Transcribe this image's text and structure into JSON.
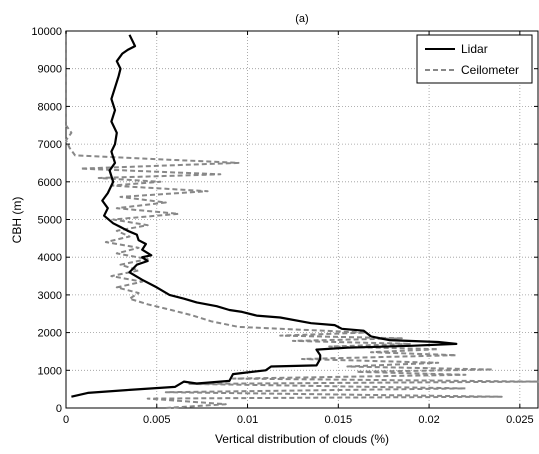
{
  "chart_data": {
    "type": "line",
    "title": "(a)",
    "xlabel": "Vertical distribution of clouds (%)",
    "ylabel": "CBH (m)",
    "xlim": [
      0,
      0.026
    ],
    "ylim": [
      0,
      10000
    ],
    "xticks": [
      0,
      0.005,
      0.01,
      0.015,
      0.02,
      0.025
    ],
    "xtick_labels": [
      "0",
      "0.005",
      "0.01",
      "0.015",
      "0.02",
      "0.025"
    ],
    "yticks": [
      0,
      1000,
      2000,
      3000,
      4000,
      5000,
      6000,
      7000,
      8000,
      9000,
      10000
    ],
    "ytick_labels": [
      "0",
      "1000",
      "2000",
      "3000",
      "4000",
      "5000",
      "6000",
      "7000",
      "8000",
      "9000",
      "10000"
    ],
    "grid": true,
    "legend_position": "top-right",
    "series": [
      {
        "name": "Lidar",
        "style": "solid",
        "color": "#000000",
        "x": [
          0.0003,
          0.0012,
          0.0035,
          0.006,
          0.0065,
          0.0072,
          0.009,
          0.0092,
          0.011,
          0.0113,
          0.0138,
          0.014,
          0.014,
          0.0138,
          0.0155,
          0.019,
          0.0215,
          0.0205,
          0.0178,
          0.0168,
          0.0164,
          0.0152,
          0.0148,
          0.0135,
          0.0118,
          0.0105,
          0.0097,
          0.009,
          0.0083,
          0.0072,
          0.0065,
          0.0057,
          0.005,
          0.0042,
          0.0035,
          0.0039,
          0.0045,
          0.0042,
          0.0047,
          0.0042,
          0.0044,
          0.004,
          0.0039,
          0.0034,
          0.003,
          0.0026,
          0.0021,
          0.0023,
          0.002,
          0.0023,
          0.0026,
          0.0024,
          0.0027,
          0.0025,
          0.0027,
          0.0028,
          0.0025,
          0.0027,
          0.0025,
          0.0027,
          0.0029,
          0.003,
          0.0028,
          0.0031,
          0.0034,
          0.0038,
          0.0037,
          0.0035
        ],
        "y": [
          300,
          400,
          480,
          560,
          700,
          650,
          720,
          900,
          1000,
          1100,
          1130,
          1300,
          1400,
          1550,
          1600,
          1650,
          1700,
          1750,
          1800,
          1900,
          2050,
          2100,
          2200,
          2250,
          2400,
          2450,
          2550,
          2600,
          2700,
          2800,
          2900,
          3000,
          3200,
          3400,
          3600,
          3800,
          3900,
          4000,
          4050,
          4200,
          4350,
          4450,
          4600,
          4700,
          4800,
          4900,
          5100,
          5300,
          5500,
          5700,
          6000,
          6300,
          6500,
          6800,
          7000,
          7300,
          7600,
          7900,
          8200,
          8500,
          8800,
          9000,
          9200,
          9400,
          9500,
          9600,
          9700,
          9900
        ]
      },
      {
        "name": "Ceilometer",
        "style": "dashed",
        "color": "#888888",
        "x": [
          0.0055,
          0.0088,
          0.0045,
          0.024,
          0.0055,
          0.022,
          0.0068,
          0.026,
          0.0092,
          0.022,
          0.016,
          0.0235,
          0.0155,
          0.0205,
          0.013,
          0.0215,
          0.0168,
          0.0205,
          0.0145,
          0.019,
          0.0125,
          0.0185,
          0.0118,
          0.0165,
          0.0095,
          0.008,
          0.007,
          0.0058,
          0.0045,
          0.0035,
          0.004,
          0.0028,
          0.0042,
          0.0025,
          0.004,
          0.003,
          0.0045,
          0.0028,
          0.004,
          0.0022,
          0.0035,
          0.0028,
          0.0045,
          0.0026,
          0.0062,
          0.0028,
          0.0055,
          0.003,
          0.0078,
          0.0025,
          0.0052,
          0.0018,
          0.0085,
          0.0008,
          0.0095,
          0.0005,
          0.0002,
          0.0,
          0.0003,
          0.0,
          0.0,
          0.0,
          0.0
        ],
        "y": [
          0,
          100,
          250,
          300,
          420,
          520,
          640,
          700,
          780,
          880,
          960,
          1020,
          1100,
          1200,
          1300,
          1400,
          1480,
          1560,
          1630,
          1700,
          1780,
          1850,
          1920,
          2000,
          2150,
          2300,
          2450,
          2600,
          2750,
          2900,
          3050,
          3200,
          3350,
          3500,
          3650,
          3800,
          3950,
          4100,
          4250,
          4400,
          4550,
          4700,
          4850,
          5000,
          5150,
          5300,
          5450,
          5600,
          5750,
          5900,
          6000,
          6100,
          6200,
          6350,
          6500,
          6700,
          6900,
          7100,
          7300,
          7500,
          8500,
          9500,
          10000
        ]
      }
    ]
  }
}
